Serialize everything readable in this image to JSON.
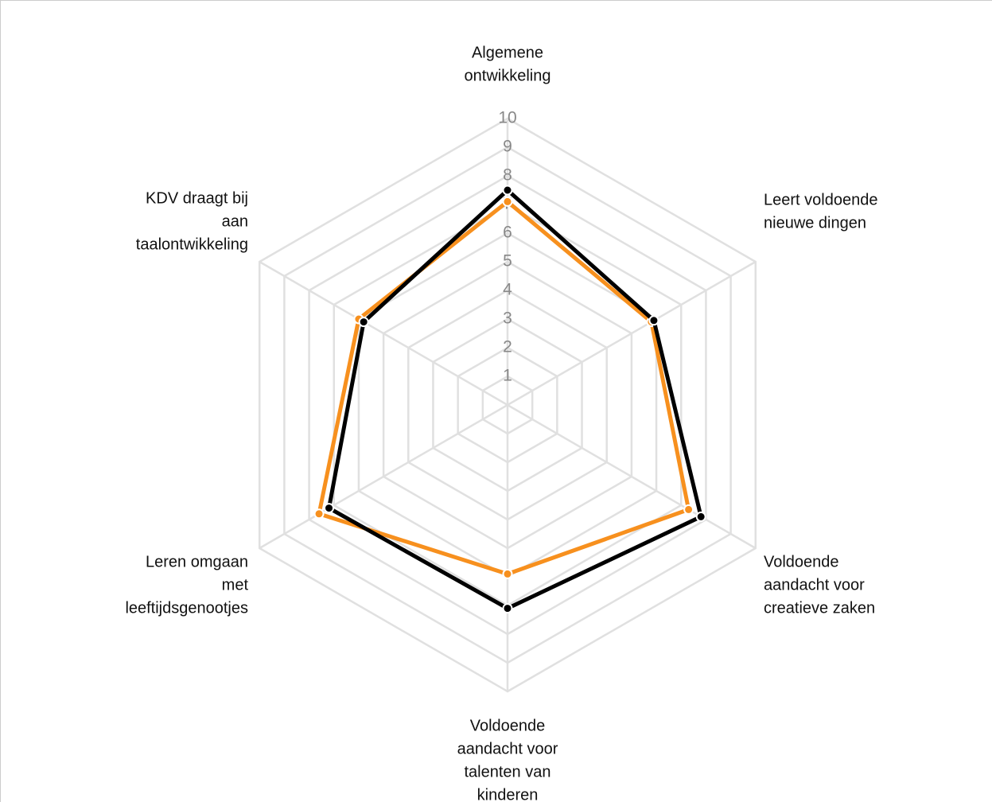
{
  "chart_data": {
    "type": "radar",
    "categories": [
      [
        "Algemene",
        "ontwikkeling"
      ],
      [
        "Leert voldoende",
        "nieuwe dingen"
      ],
      [
        "Voldoende",
        "aandacht voor",
        "creatieve zaken"
      ],
      [
        "Voldoende",
        "aandacht voor",
        "talenten van",
        "kinderen"
      ],
      [
        "Leren omgaan",
        "met",
        "leeftijdsgenootjes"
      ],
      [
        "KDV draagt bij",
        "aan",
        "taalontwikkeling"
      ]
    ],
    "series": [
      {
        "color": "#f7901e",
        "values": [
          7.1,
          5.8,
          7.3,
          5.9,
          7.6,
          6.0
        ]
      },
      {
        "color": "#000000",
        "values": [
          7.5,
          5.9,
          7.8,
          7.1,
          7.2,
          5.8
        ]
      }
    ],
    "ylim": [
      0,
      10
    ],
    "yticks": [
      1,
      2,
      3,
      4,
      5,
      6,
      7,
      8,
      9,
      10
    ],
    "grid": true
  }
}
